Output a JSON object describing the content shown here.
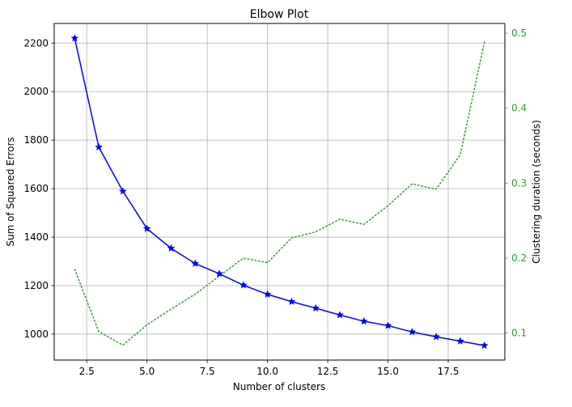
{
  "chart_data": {
    "type": "line",
    "title": "Elbow Plot",
    "xlabel": "Number of clusters",
    "ylabel": "Sum of Squared Errors",
    "ylabel_right": "Clustering duration (seconds)",
    "x": [
      2,
      3,
      4,
      5,
      6,
      7,
      8,
      9,
      10,
      11,
      12,
      13,
      14,
      15,
      16,
      17,
      18,
      19
    ],
    "series": [
      {
        "name": "Sum of Squared Errors",
        "axis": "left",
        "color": "#0000ff",
        "style": "solid",
        "marker": "star",
        "values": [
          2220,
          1771,
          1589,
          1435,
          1354,
          1291,
          1249,
          1202,
          1164,
          1134,
          1107,
          1079,
          1053,
          1035,
          1009,
          989,
          971,
          953
        ]
      },
      {
        "name": "Clustering duration (seconds)",
        "axis": "right",
        "color": "#2ca02c",
        "style": "dotted",
        "marker": "none",
        "values": [
          0.185,
          0.102,
          0.084,
          0.111,
          0.132,
          0.152,
          0.176,
          0.2,
          0.194,
          0.227,
          0.235,
          0.252,
          0.245,
          0.27,
          0.299,
          0.292,
          0.338,
          0.488
        ]
      }
    ],
    "xlim": [
      1.15,
      19.85
    ],
    "ylim": [
      893,
      2281
    ],
    "ylim_right": [
      0.064,
      0.513
    ],
    "xticks": [
      2.5,
      5.0,
      7.5,
      10.0,
      12.5,
      15.0,
      17.5
    ],
    "xtick_labels": [
      "2.5",
      "5.0",
      "7.5",
      "10.0",
      "12.5",
      "15.0",
      "17.5"
    ],
    "yticks": [
      1000,
      1200,
      1400,
      1600,
      1800,
      2000,
      2200
    ],
    "ytick_labels": [
      "1000",
      "1200",
      "1400",
      "1600",
      "1800",
      "2000",
      "2200"
    ],
    "yticks_right": [
      0.1,
      0.2,
      0.3,
      0.4,
      0.5
    ],
    "ytick_labels_right": [
      "0.1",
      "0.2",
      "0.3",
      "0.4",
      "0.5"
    ],
    "grid": true,
    "legend": "none",
    "right_axis_color": "#2ca02c"
  }
}
